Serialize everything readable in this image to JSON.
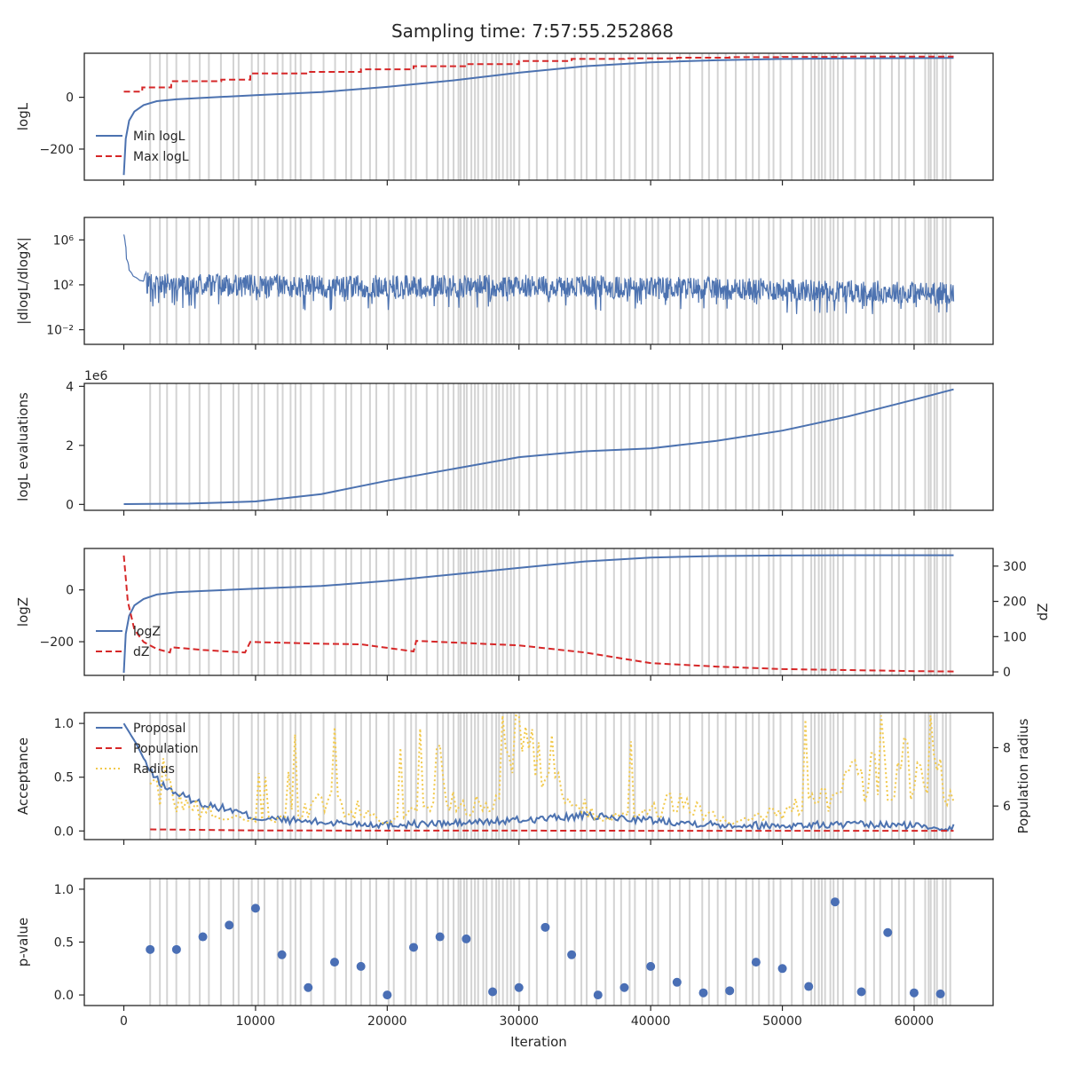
{
  "figure": {
    "title": "Sampling time: 7:57:55.252868",
    "xlabel": "Iteration"
  },
  "colors": {
    "blue": "#4c72b0",
    "red": "#d62728",
    "yellow": "#f2c94c",
    "grey": "#d3d3d3",
    "pvalue": "#4a6fb5"
  },
  "chart_data": [
    {
      "type": "line",
      "panel": "logL",
      "ylabel": "logL",
      "ylim": [
        -320,
        170
      ],
      "yticks": [
        {
          "v": 0,
          "label": "0"
        },
        {
          "v": -200,
          "label": "−200"
        }
      ],
      "legend": "left",
      "series": [
        {
          "name": "Min logL",
          "style": "solid",
          "color": "blue",
          "x": [
            0,
            150,
            400,
            800,
            1500,
            2500,
            4000,
            6000,
            10000,
            15000,
            20000,
            25000,
            30000,
            35000,
            40000,
            45000,
            50000,
            55000,
            60000,
            63000
          ],
          "y": [
            -300,
            -160,
            -90,
            -55,
            -30,
            -15,
            -8,
            -2,
            8,
            20,
            40,
            65,
            95,
            120,
            135,
            143,
            148,
            150,
            151,
            152
          ]
        },
        {
          "name": "Max logL",
          "style": "dashed",
          "color": "red",
          "x": [
            0,
            1400,
            1400,
            3600,
            3600,
            7400,
            7400,
            9600,
            9600,
            14000,
            14000,
            18000,
            18000,
            22000,
            22000,
            26000,
            26000,
            30000,
            30000,
            34000,
            34000,
            38000,
            38000,
            42000,
            42000,
            46000,
            46000,
            50000,
            50000,
            55000,
            55000,
            63000
          ],
          "y": [
            22,
            22,
            38,
            38,
            62,
            62,
            68,
            68,
            92,
            92,
            98,
            98,
            108,
            108,
            120,
            120,
            128,
            128,
            140,
            140,
            148,
            148,
            150,
            150,
            153,
            153,
            155,
            155,
            156,
            156,
            157,
            157
          ]
        }
      ]
    },
    {
      "type": "line",
      "panel": "dlogL_dlogX",
      "scale": "log",
      "ylabel": "|dlogL/dlogX|",
      "ylim": [
        0.0005,
        100000000
      ],
      "yticks": [
        {
          "v": 1000000,
          "label": "10⁶"
        },
        {
          "v": 100,
          "label": "10²"
        },
        {
          "v": 0.01,
          "label": "10⁻²"
        }
      ],
      "series": [
        {
          "name": "",
          "style": "solid",
          "color": "blue",
          "x": [
            0,
            100,
            200,
            400,
            700,
            1200,
            2000,
            5000,
            10000,
            20000,
            30000,
            40000,
            50000,
            60000,
            63000
          ],
          "y": [
            3000000,
            500000,
            20000,
            2000,
            600,
            250,
            140,
            100,
            80,
            70,
            85,
            60,
            35,
            20,
            18
          ]
        }
      ]
    },
    {
      "type": "line",
      "panel": "logL_evaluations",
      "ylabel": "logL evaluations",
      "offset_text": "1e6",
      "ylim": [
        -0.2,
        4.1
      ],
      "yticks": [
        {
          "v": 0,
          "label": "0"
        },
        {
          "v": 2,
          "label": "2"
        },
        {
          "v": 4,
          "label": "4"
        }
      ],
      "series": [
        {
          "name": "",
          "style": "solid",
          "color": "blue",
          "x": [
            0,
            5000,
            10000,
            15000,
            20000,
            25000,
            30000,
            35000,
            40000,
            45000,
            50000,
            55000,
            60000,
            63000
          ],
          "y": [
            0.01,
            0.03,
            0.1,
            0.35,
            0.8,
            1.2,
            1.6,
            1.8,
            1.9,
            2.15,
            2.5,
            2.98,
            3.55,
            3.9
          ]
        }
      ]
    },
    {
      "type": "line",
      "panel": "logZ",
      "ylabel": "logZ",
      "ylabel_right": "dZ",
      "ylim": [
        -330,
        160
      ],
      "yticks": [
        {
          "v": 0,
          "label": "0"
        },
        {
          "v": -200,
          "label": "−200"
        }
      ],
      "ylim_right": [
        -10,
        350
      ],
      "yticks_right": [
        {
          "v": 0,
          "label": "0"
        },
        {
          "v": 100,
          "label": "100"
        },
        {
          "v": 200,
          "label": "200"
        },
        {
          "v": 300,
          "label": "300"
        }
      ],
      "legend": "left",
      "series": [
        {
          "name": "logZ",
          "style": "solid",
          "color": "blue",
          "axis": "left",
          "x": [
            0,
            150,
            400,
            800,
            1500,
            2500,
            4000,
            6000,
            10000,
            15000,
            20000,
            25000,
            30000,
            35000,
            40000,
            45000,
            50000,
            55000,
            60000,
            63000
          ],
          "y": [
            -320,
            -170,
            -100,
            -60,
            -35,
            -18,
            -9,
            -4,
            5,
            15,
            35,
            60,
            85,
            110,
            125,
            131,
            133,
            134,
            134,
            134
          ]
        },
        {
          "name": "dZ",
          "style": "dashed",
          "color": "red",
          "axis": "right",
          "x": [
            0,
            300,
            800,
            1500,
            2500,
            3500,
            3600,
            6000,
            9200,
            9600,
            15000,
            18000,
            22000,
            22200,
            30000,
            35000,
            40000,
            45000,
            50000,
            55000,
            60000,
            63000
          ],
          "y": [
            330,
            200,
            120,
            85,
            65,
            55,
            70,
            62,
            55,
            85,
            80,
            78,
            58,
            88,
            75,
            55,
            25,
            15,
            8,
            5,
            2,
            1
          ]
        }
      ]
    },
    {
      "type": "line",
      "panel": "acceptance",
      "ylabel": "Acceptance",
      "ylabel_right": "Population radius",
      "ylim": [
        -0.08,
        1.1
      ],
      "yticks": [
        {
          "v": 0,
          "label": "0.0"
        },
        {
          "v": 0.5,
          "label": "0.5"
        },
        {
          "v": 1,
          "label": "1.0"
        }
      ],
      "ylim_right": [
        4.85,
        9.2
      ],
      "yticks_right": [
        {
          "v": 6,
          "label": "6"
        },
        {
          "v": 8,
          "label": "8"
        }
      ],
      "legend": "top-left",
      "series": [
        {
          "name": "Proposal",
          "style": "solid",
          "color": "blue",
          "axis": "left",
          "x": [
            0,
            1000,
            2000,
            3000,
            4000,
            6000,
            8000,
            10000,
            15000,
            20000,
            25000,
            30000,
            35000,
            40000,
            45000,
            50000,
            55000,
            60000,
            63000
          ],
          "y": [
            1.0,
            0.8,
            0.55,
            0.42,
            0.35,
            0.25,
            0.2,
            0.12,
            0.08,
            0.06,
            0.07,
            0.1,
            0.14,
            0.1,
            0.06,
            0.05,
            0.06,
            0.05,
            0.03
          ]
        },
        {
          "name": "Population",
          "style": "dashed",
          "color": "red",
          "axis": "left",
          "x": [
            2000,
            6000,
            10000,
            20000,
            30000,
            40000,
            50000,
            60000,
            63000
          ],
          "y": [
            0.015,
            0.01,
            0.005,
            0.003,
            0.003,
            0.002,
            0.002,
            0.002,
            0.002
          ]
        },
        {
          "name": "Radius",
          "style": "dotted",
          "color": "yellow",
          "axis": "right",
          "x": [
            2000,
            3000,
            4000,
            6000,
            9000,
            12000,
            16000,
            20000,
            24000,
            28000,
            30000,
            34000,
            38000,
            42000,
            46000,
            50000,
            54000,
            58000,
            62000,
            63000
          ],
          "y": [
            6.3,
            6.8,
            6.1,
            5.8,
            5.5,
            5.6,
            6.2,
            5.4,
            6.4,
            5.8,
            8.2,
            6.0,
            5.6,
            6.1,
            5.5,
            5.8,
            6.3,
            7.5,
            6.8,
            6.4
          ]
        }
      ]
    },
    {
      "type": "scatter",
      "panel": "p_value",
      "ylabel": "p-value",
      "ylim": [
        -0.1,
        1.1
      ],
      "yticks": [
        {
          "v": 0,
          "label": "0.0"
        },
        {
          "v": 0.5,
          "label": "0.5"
        },
        {
          "v": 1,
          "label": "1.0"
        }
      ],
      "series": [
        {
          "name": "",
          "color": "pvalue",
          "x": [
            2000,
            4000,
            6000,
            8000,
            10000,
            12000,
            14000,
            16000,
            18000,
            20000,
            22000,
            24000,
            26000,
            28000,
            30000,
            32000,
            34000,
            36000,
            38000,
            40000,
            42000,
            44000,
            46000,
            48000,
            50000,
            52000,
            54000,
            56000,
            58000,
            60000,
            62000
          ],
          "y": [
            0.43,
            0.43,
            0.55,
            0.66,
            0.82,
            0.38,
            0.07,
            0.31,
            0.27,
            0.0,
            0.45,
            0.55,
            0.53,
            0.03,
            0.07,
            0.64,
            0.38,
            0.0,
            0.07,
            0.27,
            0.12,
            0.02,
            0.04,
            0.31,
            0.25,
            0.08,
            0.88,
            0.03,
            0.59,
            0.02,
            0.01
          ]
        }
      ]
    }
  ],
  "xaxis": {
    "xlim": [
      -3000,
      66000
    ],
    "ticks": [
      {
        "v": 0,
        "label": "0"
      },
      {
        "v": 10000,
        "label": "10000"
      },
      {
        "v": 20000,
        "label": "20000"
      },
      {
        "v": 30000,
        "label": "30000"
      },
      {
        "v": 40000,
        "label": "40000"
      },
      {
        "v": 50000,
        "label": "50000"
      },
      {
        "v": 60000,
        "label": "60000"
      }
    ]
  }
}
